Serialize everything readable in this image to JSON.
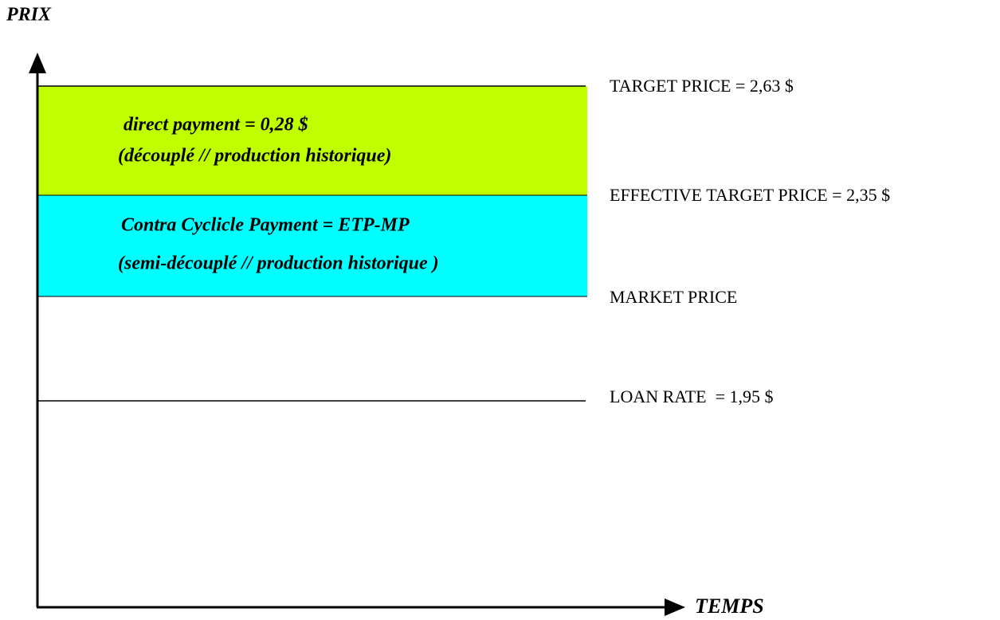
{
  "axes": {
    "y_label": "PRIX",
    "x_label": "TEMPS"
  },
  "boxes": [
    {
      "lines": [
        "direct payment = 0,28 $",
        "(découplé // production historique)"
      ]
    },
    {
      "lines": [
        "Contra Cyclicle Payment = ETP-MP",
        "(semi-découplé // production historique )"
      ]
    }
  ],
  "levels": [
    "TARGET PRICE = 2,63 $",
    "EFFECTIVE TARGET PRICE = 2,35 $",
    "MARKET PRICE",
    "LOAN RATE  = 1,95 $"
  ]
}
